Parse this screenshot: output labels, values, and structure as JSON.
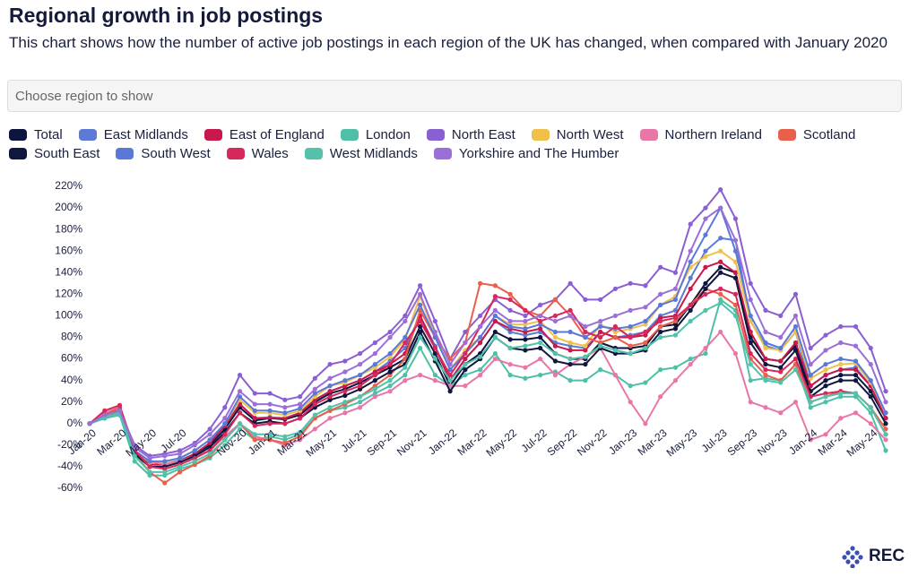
{
  "controls": {
    "placeholder": "Choose region to show"
  },
  "logo": "REC",
  "chart_data": {
    "type": "line",
    "title": "Regional growth in job postings",
    "subtitle": "This chart shows how the number of active job postings in each region of the UK has changed, when compared with January 2020",
    "categories": [
      "Jan-20",
      null,
      "Mar-20",
      null,
      "May-20",
      null,
      "Jul-20",
      null,
      null,
      null,
      "Nov-20",
      null,
      "Jan-21",
      null,
      "Mar-21",
      null,
      "May-21",
      null,
      "Jul-21",
      null,
      "Sep-21",
      null,
      "Nov-21",
      null,
      "Jan-22",
      null,
      "Mar-22",
      null,
      "May-22",
      null,
      "Jul-22",
      null,
      "Sep-22",
      null,
      "Nov-22",
      null,
      "Jan-23",
      null,
      "Mar-23",
      null,
      "May-23",
      null,
      "Jul-23",
      null,
      "Sep-23",
      null,
      "Nov-23",
      null,
      "Jan-24",
      null,
      "Mar-24",
      null,
      "May-24",
      null
    ],
    "ylim": [
      -60,
      220
    ],
    "yticks": [
      {
        "value": -60,
        "label": "-60%"
      },
      {
        "value": -40,
        "label": "-40%"
      },
      {
        "value": -20,
        "label": "-20%"
      },
      {
        "value": 0,
        "label": "0%"
      },
      {
        "value": 20,
        "label": "20%"
      },
      {
        "value": 40,
        "label": "40%"
      },
      {
        "value": 60,
        "label": "60%"
      },
      {
        "value": 80,
        "label": "80%"
      },
      {
        "value": 100,
        "label": "100%"
      },
      {
        "value": 120,
        "label": "120%"
      },
      {
        "value": 140,
        "label": "140%"
      },
      {
        "value": 160,
        "label": "160%"
      },
      {
        "value": 180,
        "label": "180%"
      },
      {
        "value": 200,
        "label": "200%"
      },
      {
        "value": 220,
        "label": "220%"
      }
    ],
    "grid": false,
    "series": [
      {
        "name": "Total",
        "color": "#0d1440",
        "values": [
          0,
          8,
          10,
          -25,
          -38,
          -38,
          -35,
          -28,
          -20,
          -5,
          15,
          3,
          5,
          4,
          8,
          20,
          28,
          32,
          38,
          45,
          52,
          60,
          90,
          65,
          35,
          55,
          65,
          85,
          78,
          78,
          80,
          65,
          60,
          60,
          75,
          70,
          70,
          72,
          90,
          92,
          110,
          130,
          145,
          140,
          80,
          60,
          58,
          72,
          30,
          40,
          45,
          45,
          30,
          5
        ]
      },
      {
        "name": "East Midlands",
        "color": "#5b7bd5",
        "values": [
          0,
          5,
          8,
          -28,
          -38,
          -38,
          -34,
          -28,
          -18,
          -2,
          18,
          5,
          6,
          5,
          10,
          22,
          30,
          35,
          40,
          48,
          58,
          70,
          100,
          72,
          40,
          60,
          75,
          95,
          85,
          82,
          85,
          75,
          72,
          70,
          85,
          80,
          82,
          85,
          100,
          105,
          135,
          160,
          172,
          170,
          95,
          72,
          68,
          85,
          35,
          45,
          50,
          52,
          35,
          5
        ]
      },
      {
        "name": "East of England",
        "color": "#c8194b",
        "values": [
          0,
          10,
          15,
          -28,
          -38,
          -38,
          -35,
          -28,
          -18,
          -2,
          18,
          5,
          5,
          5,
          10,
          22,
          30,
          35,
          40,
          48,
          55,
          65,
          100,
          70,
          40,
          60,
          75,
          95,
          88,
          85,
          88,
          72,
          68,
          68,
          85,
          80,
          80,
          82,
          98,
          100,
          125,
          145,
          150,
          140,
          85,
          60,
          58,
          75,
          35,
          45,
          50,
          50,
          35,
          5
        ]
      },
      {
        "name": "London",
        "color": "#4fbfa8",
        "values": [
          0,
          5,
          8,
          -35,
          -48,
          -48,
          -42,
          -38,
          -32,
          -20,
          -5,
          -15,
          -12,
          -15,
          -10,
          5,
          12,
          15,
          20,
          28,
          35,
          45,
          70,
          45,
          35,
          45,
          50,
          65,
          45,
          42,
          45,
          48,
          40,
          40,
          50,
          45,
          35,
          38,
          50,
          52,
          60,
          65,
          115,
          105,
          40,
          42,
          40,
          55,
          15,
          20,
          25,
          25,
          10,
          -25
        ]
      },
      {
        "name": "North East",
        "color": "#8a5fd1",
        "values": [
          0,
          10,
          12,
          -20,
          -30,
          -28,
          -25,
          -18,
          -5,
          15,
          45,
          28,
          28,
          22,
          25,
          42,
          55,
          58,
          65,
          75,
          85,
          100,
          128,
          95,
          60,
          85,
          100,
          115,
          105,
          100,
          110,
          115,
          130,
          115,
          115,
          125,
          130,
          128,
          145,
          140,
          185,
          200,
          217,
          190,
          130,
          105,
          100,
          120,
          70,
          82,
          90,
          90,
          70,
          30
        ]
      },
      {
        "name": "North West",
        "color": "#f0c04a",
        "values": [
          0,
          8,
          10,
          -25,
          -36,
          -36,
          -32,
          -25,
          -15,
          0,
          22,
          10,
          10,
          8,
          12,
          25,
          35,
          38,
          45,
          52,
          62,
          78,
          118,
          82,
          50,
          68,
          80,
          100,
          92,
          92,
          95,
          80,
          75,
          72,
          92,
          85,
          88,
          92,
          110,
          118,
          145,
          155,
          160,
          150,
          95,
          70,
          68,
          85,
          42,
          50,
          55,
          56,
          38,
          10
        ]
      },
      {
        "name": "Northern Ireland",
        "color": "#e877a8",
        "values": [
          0,
          10,
          15,
          -25,
          -35,
          -38,
          -35,
          -30,
          -25,
          -12,
          0,
          -12,
          -15,
          -20,
          -15,
          -5,
          5,
          10,
          15,
          25,
          30,
          40,
          45,
          40,
          35,
          35,
          45,
          60,
          55,
          52,
          60,
          45,
          55,
          62,
          70,
          45,
          20,
          0,
          25,
          40,
          55,
          70,
          85,
          65,
          20,
          15,
          10,
          20,
          -15,
          -10,
          5,
          10,
          0,
          -15
        ]
      },
      {
        "name": "Scotland",
        "color": "#e8604c",
        "values": [
          0,
          8,
          15,
          -28,
          -45,
          -55,
          -45,
          -38,
          -30,
          -15,
          0,
          -15,
          -15,
          -18,
          -12,
          5,
          12,
          18,
          25,
          35,
          45,
          60,
          105,
          80,
          60,
          75,
          130,
          128,
          120,
          105,
          100,
          115,
          100,
          80,
          75,
          80,
          72,
          75,
          90,
          95,
          110,
          125,
          120,
          110,
          60,
          45,
          40,
          55,
          20,
          25,
          30,
          28,
          15,
          -5
        ]
      },
      {
        "name": "South East",
        "color": "#10173f",
        "values": [
          0,
          8,
          12,
          -28,
          -40,
          -40,
          -36,
          -30,
          -22,
          -8,
          10,
          0,
          2,
          0,
          5,
          15,
          22,
          26,
          32,
          40,
          48,
          55,
          85,
          58,
          30,
          50,
          60,
          80,
          70,
          68,
          70,
          58,
          55,
          55,
          70,
          65,
          65,
          68,
          85,
          88,
          105,
          125,
          140,
          135,
          75,
          55,
          52,
          68,
          25,
          35,
          40,
          40,
          25,
          0
        ]
      },
      {
        "name": "South West",
        "color": "#5a78d8",
        "values": [
          0,
          6,
          10,
          -25,
          -35,
          -35,
          -32,
          -25,
          -15,
          0,
          25,
          12,
          12,
          10,
          14,
          28,
          35,
          40,
          45,
          55,
          65,
          80,
          110,
          80,
          50,
          65,
          80,
          100,
          90,
          88,
          92,
          85,
          85,
          80,
          90,
          88,
          90,
          95,
          110,
          115,
          150,
          175,
          200,
          160,
          100,
          75,
          70,
          90,
          45,
          55,
          60,
          58,
          40,
          10
        ]
      },
      {
        "name": "Wales",
        "color": "#d6285a",
        "values": [
          0,
          12,
          17,
          -25,
          -40,
          -42,
          -38,
          -32,
          -25,
          -10,
          10,
          -2,
          0,
          0,
          5,
          18,
          25,
          30,
          35,
          45,
          55,
          75,
          95,
          70,
          45,
          65,
          90,
          118,
          115,
          105,
          95,
          100,
          105,
          85,
          80,
          90,
          80,
          85,
          95,
          98,
          110,
          120,
          125,
          120,
          65,
          50,
          48,
          60,
          25,
          28,
          30,
          28,
          15,
          -10
        ]
      },
      {
        "name": "West Midlands",
        "color": "#52c2ab",
        "values": [
          0,
          6,
          10,
          -30,
          -45,
          -45,
          -40,
          -35,
          -28,
          -15,
          0,
          -10,
          -10,
          -12,
          -8,
          8,
          15,
          20,
          25,
          32,
          40,
          52,
          80,
          60,
          40,
          55,
          62,
          80,
          70,
          72,
          75,
          65,
          60,
          62,
          72,
          68,
          65,
          70,
          80,
          82,
          95,
          105,
          112,
          100,
          55,
          40,
          38,
          50,
          20,
          25,
          28,
          28,
          15,
          -10
        ]
      },
      {
        "name": "Yorkshire and The Humber",
        "color": "#9b6fd8",
        "values": [
          0,
          8,
          12,
          -22,
          -32,
          -30,
          -28,
          -20,
          -10,
          5,
          30,
          18,
          18,
          15,
          18,
          32,
          42,
          48,
          55,
          65,
          80,
          95,
          120,
          85,
          55,
          75,
          90,
          105,
          95,
          95,
          100,
          95,
          100,
          90,
          95,
          100,
          105,
          108,
          120,
          125,
          160,
          190,
          200,
          170,
          115,
          85,
          80,
          100,
          55,
          68,
          75,
          72,
          55,
          20
        ]
      }
    ]
  }
}
